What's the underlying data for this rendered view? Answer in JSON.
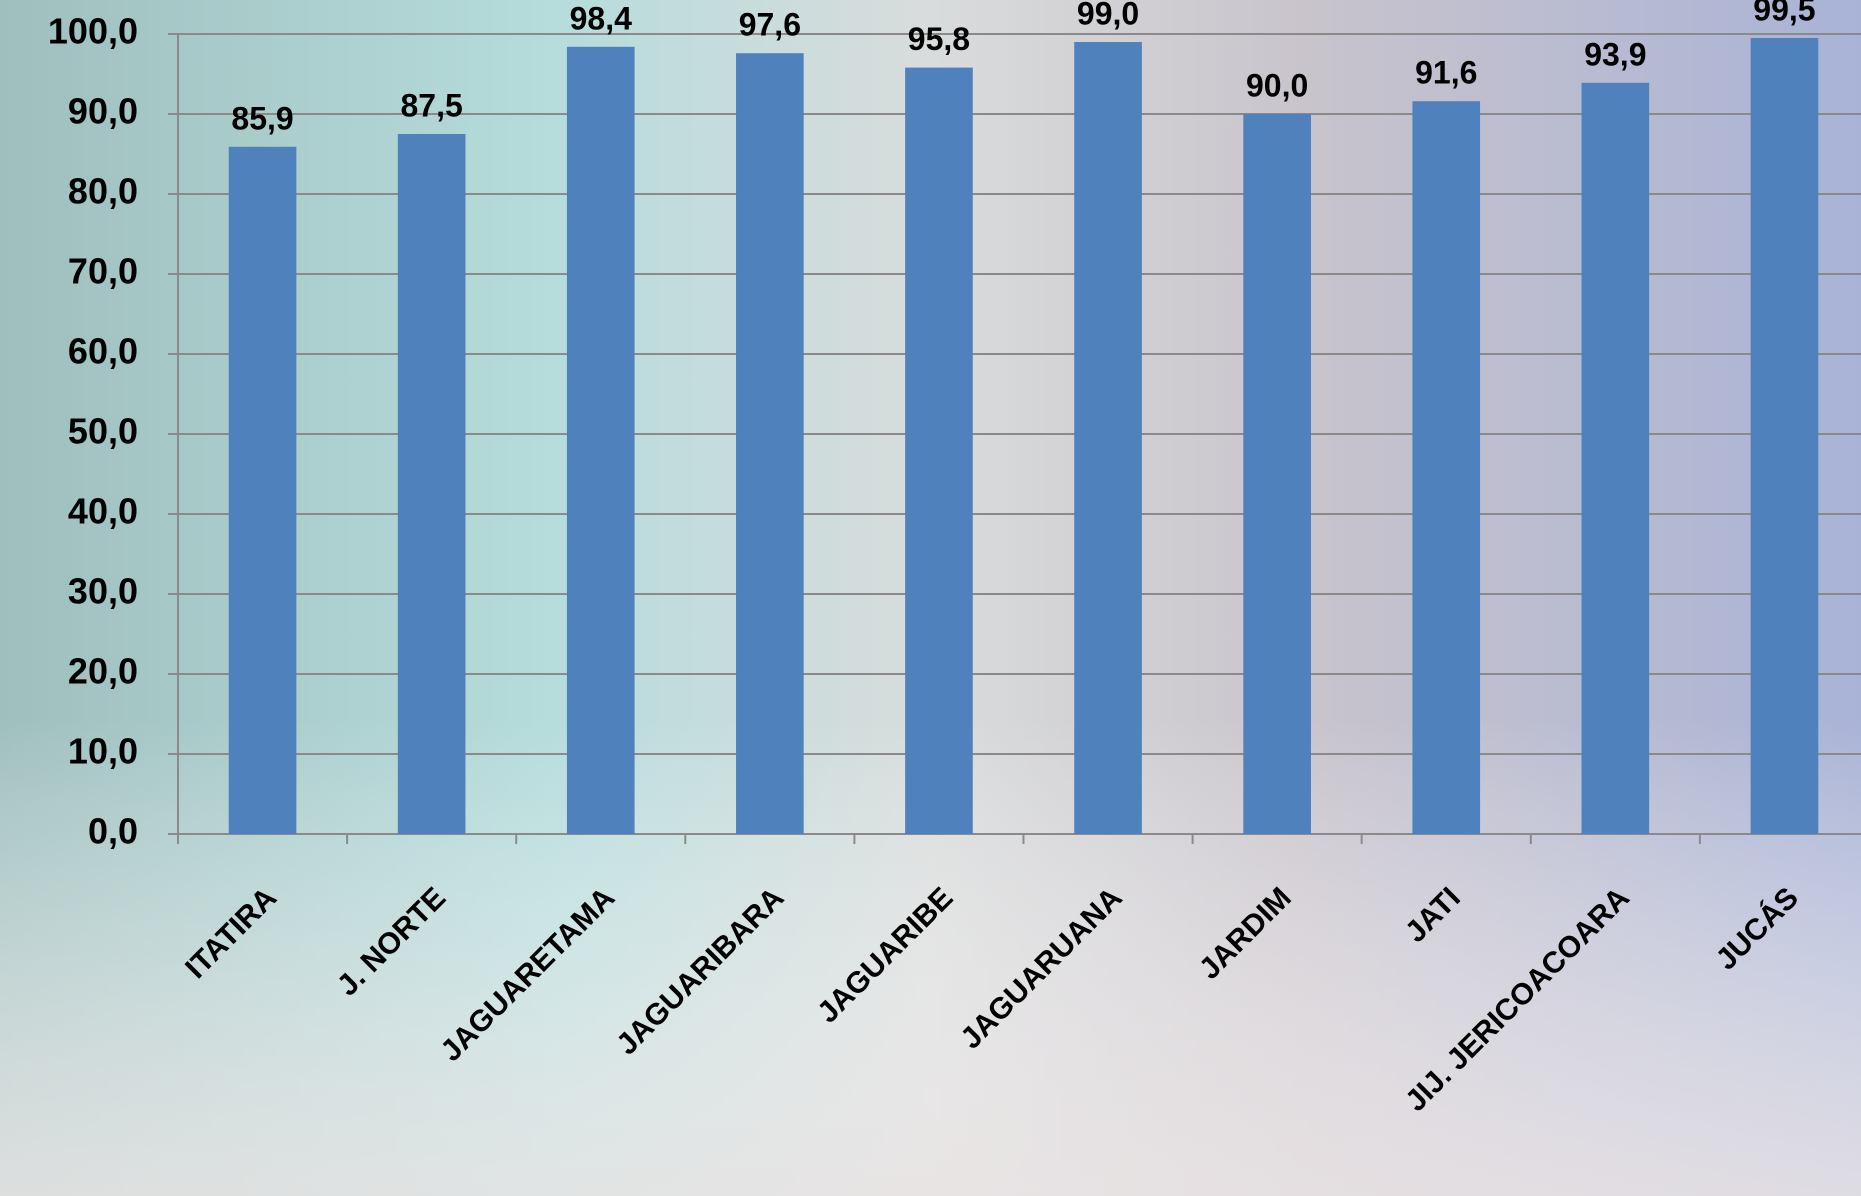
{
  "chart_data": {
    "type": "bar",
    "categories": [
      "ITATIRA",
      "J. NORTE",
      "JAGUARETAMA",
      "JAGUARIBARA",
      "JAGUARIBE",
      "JAGUARUANA",
      "JARDIM",
      "JATI",
      "JIJ. JERICOACOARA",
      "JUCÁS"
    ],
    "values": [
      85.9,
      87.5,
      98.4,
      97.6,
      95.8,
      99.0,
      90.0,
      91.6,
      93.9,
      99.5
    ],
    "value_labels": [
      "85,9",
      "87,5",
      "98,4",
      "97,6",
      "95,8",
      "99,0",
      "90,0",
      "91,6",
      "93,9",
      "99,5"
    ],
    "color": "#4f81bd",
    "ylim": [
      0,
      100
    ],
    "yticks": [
      {
        "value": 0,
        "label": "0,0"
      },
      {
        "value": 10,
        "label": "10,0"
      },
      {
        "value": 20,
        "label": "20,0"
      },
      {
        "value": 30,
        "label": "30,0"
      },
      {
        "value": 40,
        "label": "40,0"
      },
      {
        "value": 50,
        "label": "50,0"
      },
      {
        "value": 60,
        "label": "60,0"
      },
      {
        "value": 70,
        "label": "70,0"
      },
      {
        "value": 80,
        "label": "80,0"
      },
      {
        "value": 90,
        "label": "90,0"
      },
      {
        "value": 100,
        "label": "100,0"
      }
    ],
    "grid": true
  }
}
